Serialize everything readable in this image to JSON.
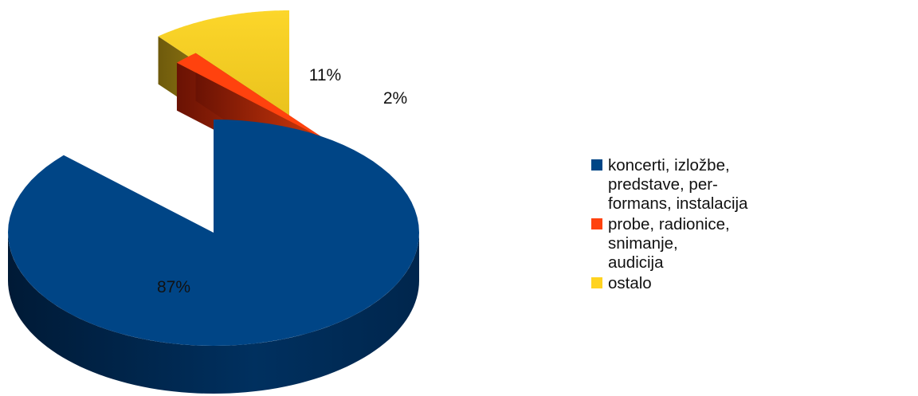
{
  "chart_data": {
    "type": "pie",
    "title": "",
    "style": "3d-exploded",
    "legend_position": "right",
    "slices": [
      {
        "label": "koncerti, izložbe, predstave, per-formans, instalacija",
        "legend_lines": [
          "koncerti, izložbe, predstave, per-",
          "formans, instalacija"
        ],
        "value": 87,
        "value_label": "87%",
        "color": "#004586"
      },
      {
        "label": "probe, radionice, snimanje, audicija",
        "legend_lines": [
          "probe, radionice, snimanje,",
          "audicija"
        ],
        "value": 2,
        "value_label": "2%",
        "color": "#ff420e"
      },
      {
        "label": "ostalo",
        "legend_lines": [
          "ostalo"
        ],
        "value": 11,
        "value_label": "11%",
        "color": "#ffd320"
      }
    ]
  }
}
